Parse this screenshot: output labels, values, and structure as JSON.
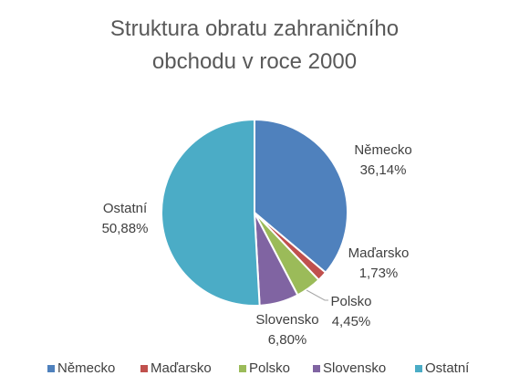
{
  "chart_data": {
    "type": "pie",
    "title": "Struktura obratu zahraničního obchodu v roce 2000",
    "categories": [
      "Německo",
      "Maďarsko",
      "Polsko",
      "Slovensko",
      "Ostatní"
    ],
    "values": [
      36.14,
      1.73,
      4.45,
      6.8,
      50.88
    ],
    "value_labels": [
      "36,14%",
      "1,73%",
      "4,45%",
      "6,80%",
      "50,88%"
    ],
    "colors": [
      "#4f81bd",
      "#c0504d",
      "#9bbb59",
      "#8064a2",
      "#4bacc6"
    ],
    "legend": "bottom"
  }
}
